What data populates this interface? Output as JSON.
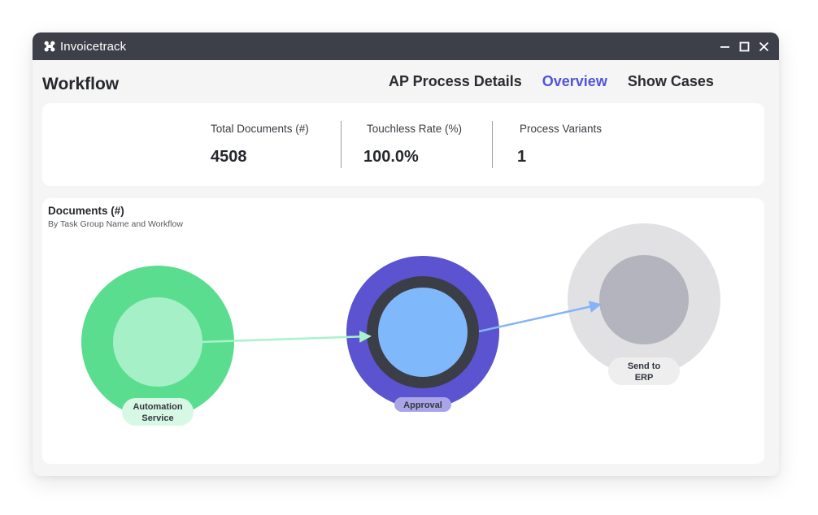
{
  "app": {
    "title": "Invoicetrack",
    "logo_icon": "invoicetrack-logo-icon"
  },
  "window_controls": [
    {
      "name": "minimize-button",
      "icon": "minimize-icon"
    },
    {
      "name": "maximize-button",
      "icon": "maximize-icon"
    },
    {
      "name": "close-button",
      "icon": "close-icon"
    }
  ],
  "page": {
    "title": "Workflow"
  },
  "tabs": [
    {
      "label": "AP Process Details",
      "active": false
    },
    {
      "label": "Overview",
      "active": true
    },
    {
      "label": "Show Cases",
      "active": false
    }
  ],
  "kpis": [
    {
      "label": "Total Documents (#)",
      "value": "4508"
    },
    {
      "label": "Touchless Rate (%)",
      "value": "100.0%"
    },
    {
      "label": "Process Variants",
      "value": "1"
    }
  ],
  "chart_data": {
    "type": "flow",
    "title": "Documents (#)",
    "subtitle": "By Task Group Name and Workflow",
    "nodes": [
      {
        "id": "automation",
        "label_lines": [
          "Automation",
          "Service"
        ],
        "outer_color": "#5bdd8f",
        "inner_color": "#a5f0c7",
        "ring_color": null,
        "label_bg": "#d8f8e6"
      },
      {
        "id": "approval",
        "label_lines": [
          "Approval"
        ],
        "outer_color": "#5b53cf",
        "inner_color": "#7fb8fb",
        "ring_color": "#3b3d47",
        "label_bg": "#a9a5e6"
      },
      {
        "id": "erp",
        "label_lines": [
          "Send to",
          "ERP"
        ],
        "outer_color": "#e1e1e3",
        "inner_color": "#b3b4bd",
        "ring_color": null,
        "label_bg": "#eeeeef"
      }
    ],
    "edges": [
      {
        "from": "automation",
        "to": "approval",
        "color": "#a8f2cd"
      },
      {
        "from": "approval",
        "to": "erp",
        "color": "#84b4f7"
      }
    ]
  }
}
